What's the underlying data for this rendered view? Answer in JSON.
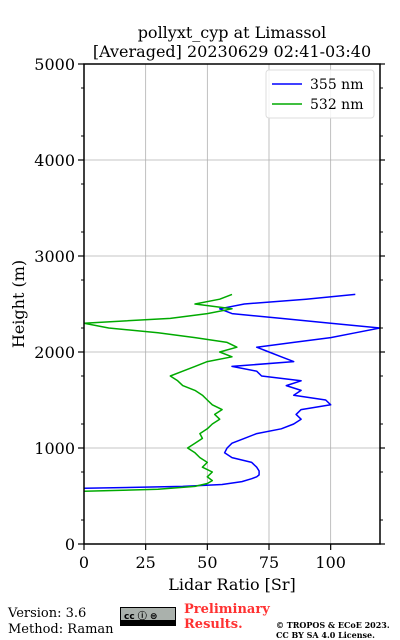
{
  "chart_data": {
    "type": "line",
    "title_line1": "pollyxt_cyp at Limassol",
    "title_line2": "[Averaged] 20230629 02:41-03:40",
    "xlabel": "Lidar Ratio [Sr]",
    "ylabel": "Height (m)",
    "xlim": [
      0,
      120
    ],
    "ylim": [
      0,
      5000
    ],
    "xticks": [
      0,
      25,
      50,
      75,
      100
    ],
    "yticks": [
      0,
      1000,
      2000,
      3000,
      4000,
      5000
    ],
    "grid": true,
    "legend_position": "top-right",
    "series": [
      {
        "name": "355 nm",
        "color": "#0000ff",
        "y": [
          580,
          600,
          620,
          650,
          680,
          700,
          720,
          760,
          800,
          850,
          900,
          950,
          1000,
          1050,
          1100,
          1150,
          1200,
          1250,
          1300,
          1350,
          1400,
          1450,
          1500,
          1550,
          1600,
          1650,
          1700,
          1750,
          1800,
          1850,
          1900,
          1950,
          2000,
          2050,
          2100,
          2150,
          2200,
          2250,
          2300,
          2350,
          2400,
          2450,
          2500,
          2550,
          2600
        ],
        "x": [
          0,
          40,
          56,
          64,
          68,
          70,
          71,
          71,
          70,
          68,
          60,
          57,
          58,
          60,
          65,
          70,
          80,
          85,
          88,
          86,
          88,
          100,
          98,
          85,
          88,
          82,
          88,
          72,
          70,
          60,
          85,
          80,
          75,
          70,
          85,
          100,
          110,
          120,
          100,
          80,
          60,
          55,
          65,
          90,
          110
        ]
      },
      {
        "name": "532 nm",
        "color": "#00aa00",
        "y": [
          550,
          570,
          600,
          630,
          660,
          700,
          750,
          800,
          850,
          900,
          950,
          1000,
          1050,
          1100,
          1150,
          1200,
          1250,
          1300,
          1350,
          1400,
          1450,
          1500,
          1550,
          1600,
          1650,
          1700,
          1750,
          1800,
          1850,
          1900,
          1950,
          2000,
          2050,
          2100,
          2150,
          2200,
          2250,
          2300,
          2350,
          2400,
          2450,
          2500,
          2550,
          2600
        ],
        "x": [
          0,
          30,
          45,
          50,
          52,
          50,
          52,
          48,
          50,
          47,
          45,
          42,
          45,
          48,
          47,
          50,
          52,
          55,
          53,
          56,
          52,
          50,
          48,
          45,
          40,
          38,
          35,
          40,
          45,
          50,
          60,
          55,
          62,
          58,
          45,
          30,
          10,
          0,
          35,
          50,
          60,
          45,
          55,
          60
        ]
      }
    ]
  },
  "footer": {
    "version": "Version: 3.6",
    "method": "Method: Raman",
    "cc_badge": "cc ⓘ ⊜",
    "prelim_line1": "Preliminary",
    "prelim_line2": "Results.",
    "license_line1": "© TROPOS & ECoE 2023.",
    "license_line2": "CC BY SA 4.0 License."
  },
  "colors": {
    "series_355": "#0000ff",
    "series_532": "#00aa00",
    "prelim_red": "#ff3131",
    "grid": "#b0b0b0"
  }
}
